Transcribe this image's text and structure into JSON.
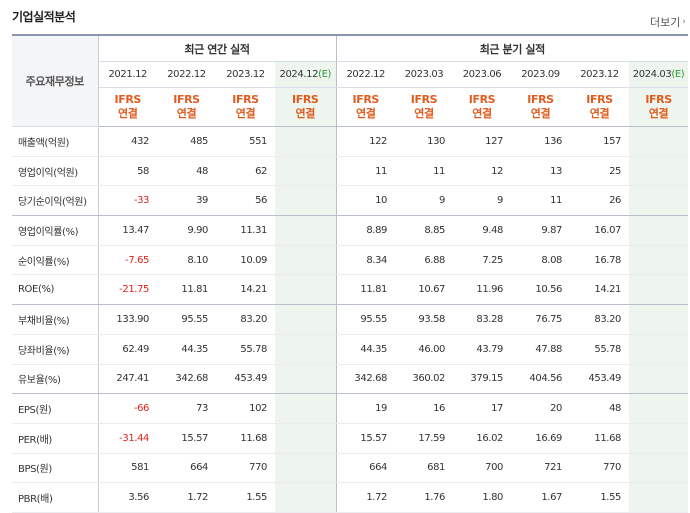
{
  "title": "기업실적분석",
  "more_label": "더보기",
  "row_header": "주요재무정보",
  "groups": {
    "annual": "최근 연간 실적",
    "quarterly": "최근 분기 실적"
  },
  "periods": [
    "2021.12",
    "2022.12",
    "2023.12",
    "2024.12",
    "2022.12",
    "2023.03",
    "2023.06",
    "2023.09",
    "2023.12",
    "2024.03"
  ],
  "estimate_mark": "(E)",
  "ifrs": {
    "line1": "IFRS",
    "line2": "연결"
  },
  "rows": [
    {
      "label": "매출액(억원)",
      "values": [
        "432",
        "485",
        "551",
        "",
        "122",
        "130",
        "127",
        "136",
        "157",
        ""
      ]
    },
    {
      "label": "영업이익(억원)",
      "values": [
        "58",
        "48",
        "62",
        "",
        "11",
        "11",
        "12",
        "13",
        "25",
        ""
      ]
    },
    {
      "label": "당기순이익(억원)",
      "values": [
        "-33",
        "39",
        "56",
        "",
        "10",
        "9",
        "9",
        "11",
        "26",
        ""
      ]
    },
    {
      "label": "영업이익률(%)",
      "values": [
        "13.47",
        "9.90",
        "11.31",
        "",
        "8.89",
        "8.85",
        "9.48",
        "9.87",
        "16.07",
        ""
      ]
    },
    {
      "label": "순이익률(%)",
      "values": [
        "-7.65",
        "8.10",
        "10.09",
        "",
        "8.34",
        "6.88",
        "7.25",
        "8.08",
        "16.78",
        ""
      ]
    },
    {
      "label": "ROE(%)",
      "values": [
        "-21.75",
        "11.81",
        "14.21",
        "",
        "11.81",
        "10.67",
        "11.96",
        "10.56",
        "14.21",
        ""
      ]
    },
    {
      "label": "부채비율(%)",
      "values": [
        "133.90",
        "95.55",
        "83.20",
        "",
        "95.55",
        "93.58",
        "83.28",
        "76.75",
        "83.20",
        ""
      ]
    },
    {
      "label": "당좌비율(%)",
      "values": [
        "62.49",
        "44.35",
        "55.78",
        "",
        "44.35",
        "46.00",
        "43.79",
        "47.88",
        "55.78",
        ""
      ]
    },
    {
      "label": "유보율(%)",
      "values": [
        "247.41",
        "342.68",
        "453.49",
        "",
        "342.68",
        "360.02",
        "379.15",
        "404.56",
        "453.49",
        ""
      ]
    },
    {
      "label": "EPS(원)",
      "values": [
        "-66",
        "73",
        "102",
        "",
        "19",
        "16",
        "17",
        "20",
        "48",
        ""
      ]
    },
    {
      "label": "PER(배)",
      "values": [
        "-31.44",
        "15.57",
        "11.68",
        "",
        "15.57",
        "17.59",
        "16.02",
        "16.69",
        "11.68",
        ""
      ]
    },
    {
      "label": "BPS(원)",
      "values": [
        "581",
        "664",
        "770",
        "",
        "664",
        "681",
        "700",
        "721",
        "770",
        ""
      ]
    },
    {
      "label": "PBR(배)",
      "values": [
        "3.56",
        "1.72",
        "1.55",
        "",
        "1.72",
        "1.76",
        "1.80",
        "1.67",
        "1.55",
        ""
      ]
    }
  ],
  "colors": {
    "negative": "#e2231a",
    "ifrs": "#e05c1f",
    "estimate_bg": "#eef5ee",
    "estimate_mark": "#2a9d3a"
  }
}
